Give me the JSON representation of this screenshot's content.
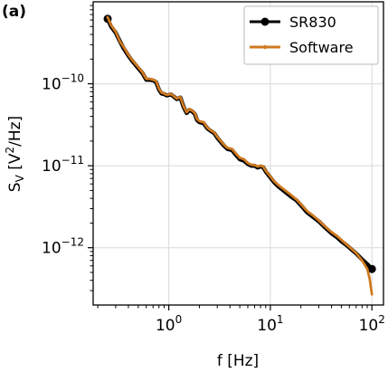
{
  "panel_label": "(a)",
  "chart_data": {
    "type": "line",
    "x_scale": "log",
    "y_scale": "log",
    "xlim": [
      0.18,
      130
    ],
    "ylim": [
      2e-13,
      1e-09
    ],
    "grid": true,
    "legend_position": "top-right",
    "xlabel": "f [Hz]",
    "ylabel": {
      "base": "S",
      "sub": "V",
      "open": " [V",
      "sup": "2",
      "close": "/Hz]"
    },
    "x_ticks": [
      {
        "value": 1,
        "base": "10",
        "exp": "0"
      },
      {
        "value": 10,
        "base": "10",
        "exp": "1"
      },
      {
        "value": 100,
        "base": "10",
        "exp": "2"
      }
    ],
    "y_ticks": [
      {
        "value": 1e-12,
        "base": "10",
        "exp": "−12"
      },
      {
        "value": 1e-11,
        "base": "10",
        "exp": "−11"
      },
      {
        "value": 1e-10,
        "base": "10",
        "exp": "−10"
      }
    ],
    "series": [
      {
        "name": "SR830",
        "color": "#000000",
        "marker": "circle",
        "x": [
          0.25,
          0.27,
          0.3,
          0.33,
          0.36,
          0.4,
          0.43,
          0.47,
          0.5,
          0.55,
          0.6,
          0.65,
          0.7,
          0.75,
          0.8,
          0.85,
          0.9,
          0.95,
          1.0,
          1.05,
          1.1,
          1.2,
          1.3,
          1.4,
          1.5,
          1.6,
          1.7,
          1.8,
          1.9,
          2.0,
          2.2,
          2.4,
          2.6,
          2.8,
          3.0,
          3.2,
          3.5,
          3.8,
          4.2,
          4.6,
          5.0,
          5.5,
          6.0,
          6.5,
          7.0,
          7.5,
          8.0,
          8.5,
          9.0,
          10,
          11,
          12,
          14,
          16,
          18,
          20,
          23,
          26,
          30,
          34,
          40,
          45,
          50,
          56,
          63,
          70,
          80,
          90,
          100
        ],
        "y": [
          6.2e-10,
          5e-10,
          4.2e-10,
          3.3e-10,
          2.7e-10,
          2.2e-10,
          1.95e-10,
          1.7e-10,
          1.55e-10,
          1.35e-10,
          1.12e-10,
          1.12e-10,
          1.1e-10,
          1.05e-10,
          8.5e-11,
          7.6e-11,
          7.5e-11,
          7.2e-11,
          7.3e-11,
          7.4e-11,
          7.1e-11,
          6.5e-11,
          6.8e-11,
          5.2e-11,
          4.4e-11,
          4.8e-11,
          4.6e-11,
          4.3e-11,
          3.6e-11,
          3.4e-11,
          3.3e-11,
          2.85e-11,
          2.65e-11,
          2.5e-11,
          2.2e-11,
          2e-11,
          1.75e-11,
          1.6e-11,
          1.55e-11,
          1.35e-11,
          1.2e-11,
          1.15e-11,
          1.05e-11,
          1e-11,
          1e-11,
          9.5e-12,
          9.8e-12,
          9.6e-12,
          8.5e-12,
          7.2e-12,
          6.2e-12,
          5.6e-12,
          4.8e-12,
          4.2e-12,
          3.8e-12,
          3.3e-12,
          2.7e-12,
          2.4e-12,
          2.1e-12,
          1.8e-12,
          1.5e-12,
          1.35e-12,
          1.2e-12,
          1.08e-12,
          9.5e-13,
          8.5e-13,
          7.2e-13,
          6.3e-13,
          5.5e-13
        ]
      },
      {
        "name": "Software",
        "color": "#d07a20",
        "marker": "dot",
        "x": [
          0.25,
          0.27,
          0.3,
          0.33,
          0.36,
          0.4,
          0.43,
          0.47,
          0.5,
          0.55,
          0.6,
          0.65,
          0.7,
          0.75,
          0.8,
          0.85,
          0.9,
          0.95,
          1.0,
          1.05,
          1.1,
          1.2,
          1.3,
          1.4,
          1.5,
          1.6,
          1.7,
          1.8,
          1.9,
          2.0,
          2.2,
          2.4,
          2.6,
          2.8,
          3.0,
          3.2,
          3.5,
          3.8,
          4.2,
          4.6,
          5.0,
          5.5,
          6.0,
          6.5,
          7.0,
          7.5,
          8.0,
          8.5,
          9.0,
          10,
          11,
          12,
          14,
          16,
          18,
          20,
          23,
          26,
          30,
          34,
          40,
          45,
          50,
          56,
          63,
          70,
          80,
          90,
          95,
          100
        ],
        "y": [
          6.5e-10,
          5.2e-10,
          4.3e-10,
          3.3e-10,
          2.8e-10,
          2.25e-10,
          2e-10,
          1.75e-10,
          1.6e-10,
          1.38e-10,
          1.15e-10,
          1.15e-10,
          1.12e-10,
          1.08e-10,
          8.7e-11,
          7.8e-11,
          7.6e-11,
          7.3e-11,
          7.4e-11,
          7.5e-11,
          7.2e-11,
          6.6e-11,
          6.9e-11,
          5.3e-11,
          4.5e-11,
          4.9e-11,
          4.7e-11,
          4.4e-11,
          3.7e-11,
          3.5e-11,
          3.4e-11,
          2.9e-11,
          2.7e-11,
          2.55e-11,
          2.25e-11,
          2.05e-11,
          1.8e-11,
          1.65e-11,
          1.6e-11,
          1.4e-11,
          1.25e-11,
          1.2e-11,
          1.08e-11,
          1.03e-11,
          1.02e-11,
          9.8e-12,
          1e-11,
          9.8e-12,
          8.7e-12,
          7.4e-12,
          6.4e-12,
          5.8e-12,
          5e-12,
          4.4e-12,
          3.9e-12,
          3.4e-12,
          2.8e-12,
          2.5e-12,
          2.15e-12,
          1.85e-12,
          1.55e-12,
          1.4e-12,
          1.25e-12,
          1.1e-12,
          9.7e-13,
          8.6e-13,
          7e-13,
          5.5e-13,
          4.2e-13,
          2.7e-13
        ]
      }
    ]
  }
}
